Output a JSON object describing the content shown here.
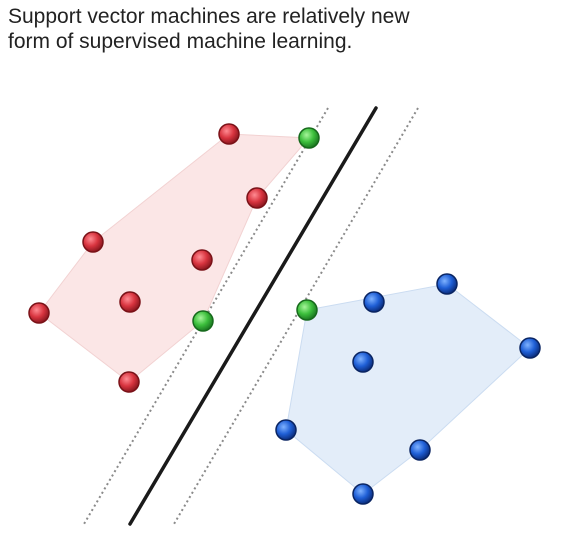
{
  "caption": {
    "line1": "Support vector machines are relatively new",
    "line2": "form of supervised machine learning."
  },
  "colors": {
    "class_a_point": "#d8343f",
    "class_a_region": "#fbe6e6",
    "class_b_point": "#1f5fd6",
    "class_b_region": "#e3edf9",
    "support_vector": "#3cbf3c",
    "decision_boundary": "#1a1a1a",
    "margin_line": "#8a8a8a"
  },
  "legend": {
    "class_a": "red points (class A)",
    "class_b": "blue points (class B)",
    "support_vectors": "green points (support vectors)"
  }
}
